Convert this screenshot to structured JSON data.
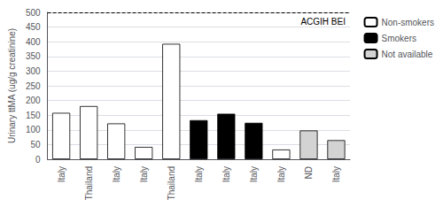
{
  "chart_data": {
    "type": "bar",
    "categories": [
      "Italy",
      "Thailand",
      "Italy",
      "Italy",
      "Thailand",
      "Italy",
      "Italy",
      "Italy",
      "Italy",
      "ND",
      "Italy"
    ],
    "series": [
      {
        "name": "Non-smokers",
        "color": "white",
        "values": [
          158,
          181,
          122,
          42,
          393,
          null,
          null,
          null,
          33,
          null,
          null
        ]
      },
      {
        "name": "Smokers",
        "color": "black",
        "values": [
          null,
          null,
          null,
          null,
          null,
          133,
          155,
          124,
          null,
          null,
          null
        ]
      },
      {
        "name": "Not available",
        "color": "#d3d3d3",
        "values": [
          null,
          null,
          null,
          null,
          null,
          null,
          null,
          null,
          null,
          98,
          65
        ]
      }
    ],
    "ylabel": "Urinary ttMA (ug/g creatinine)",
    "ylim": [
      0,
      500
    ],
    "yticks": [
      0,
      50,
      100,
      150,
      200,
      250,
      300,
      350,
      400,
      450,
      500
    ],
    "grid": true,
    "legend": "upper right",
    "annotations": [
      {
        "text": "ACGIH BEI",
        "y": 500
      }
    ]
  }
}
